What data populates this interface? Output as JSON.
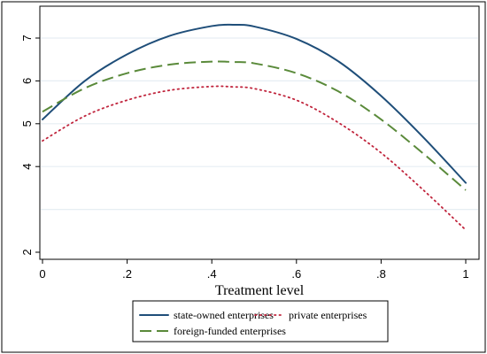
{
  "chart_data": {
    "type": "line",
    "xlabel": "Treatment level",
    "ylabel": "",
    "xlim": [
      0,
      1
    ],
    "ylim": [
      2,
      7
    ],
    "x_ticks": [
      0,
      0.2,
      0.4,
      0.6,
      0.8,
      1
    ],
    "x_tick_labels": [
      "0",
      ".2",
      ".4",
      ".6",
      ".8",
      "1"
    ],
    "y_ticks": [
      2,
      4,
      5,
      6,
      7
    ],
    "y_tick_labels": [
      "2",
      "4",
      "5",
      "6",
      "7"
    ],
    "y_grid": [
      3,
      4,
      5,
      6,
      7
    ],
    "grid": true,
    "legend_position": "bottom",
    "x": [
      0,
      0.1,
      0.2,
      0.3,
      0.4,
      0.45,
      0.5,
      0.6,
      0.7,
      0.8,
      0.9,
      1.0
    ],
    "series": [
      {
        "name": "state-owned enterprises",
        "color": "#1f4e79",
        "dash": "solid",
        "values": [
          5.1,
          6.0,
          6.62,
          7.05,
          7.28,
          7.31,
          7.27,
          6.98,
          6.45,
          5.65,
          4.68,
          3.62
        ]
      },
      {
        "name": "private enterprises",
        "color": "#c0243c",
        "dash": "dot",
        "values": [
          4.6,
          5.18,
          5.55,
          5.78,
          5.87,
          5.86,
          5.82,
          5.55,
          5.02,
          4.32,
          3.45,
          2.52
        ]
      },
      {
        "name": "foreign-funded enterprises",
        "color": "#5a8a3a",
        "dash": "dash",
        "values": [
          5.28,
          5.83,
          6.18,
          6.38,
          6.45,
          6.44,
          6.41,
          6.18,
          5.75,
          5.1,
          4.3,
          3.45
        ]
      }
    ]
  }
}
